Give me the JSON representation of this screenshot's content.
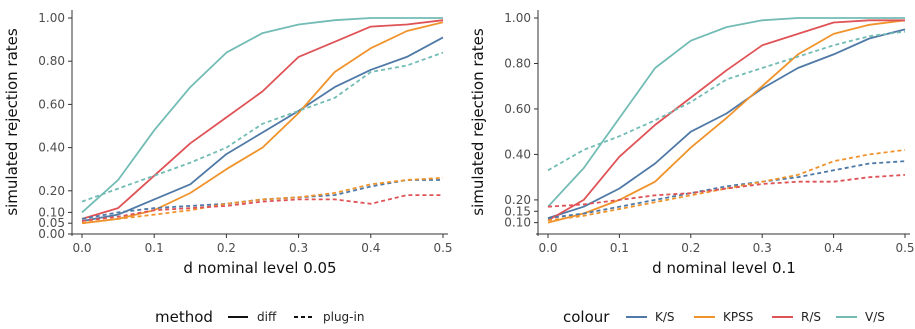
{
  "chart_data": [
    {
      "type": "line",
      "xlabel": "d nominal level 0.05",
      "ylabel": "simulated rejection rates",
      "xlim": [
        0,
        0.5
      ],
      "ylim": [
        0,
        1
      ],
      "x_ticks": [
        "0.0",
        "0.1",
        "0.2",
        "0.3",
        "0.4",
        "0.5"
      ],
      "y_ticks": [
        {
          "v": 0,
          "label": "0.00"
        },
        {
          "v": 0.05,
          "label": "0.05"
        },
        {
          "v": 0.1,
          "label": "0.10"
        },
        {
          "v": 0.2,
          "label": "0.20"
        },
        {
          "v": 0.4,
          "label": "0.40"
        },
        {
          "v": 0.6,
          "label": "0.60"
        },
        {
          "v": 0.8,
          "label": "0.80"
        },
        {
          "v": 1.0,
          "label": "1.00"
        }
      ],
      "x": [
        0,
        0.05,
        0.1,
        0.15,
        0.2,
        0.25,
        0.3,
        0.35,
        0.4,
        0.45,
        0.5
      ],
      "series": [
        {
          "name": "K/S",
          "method": "diff",
          "values": [
            0.06,
            0.09,
            0.16,
            0.23,
            0.37,
            0.47,
            0.57,
            0.68,
            0.76,
            0.82,
            0.91
          ]
        },
        {
          "name": "KPSS",
          "method": "diff",
          "values": [
            0.05,
            0.07,
            0.11,
            0.19,
            0.3,
            0.4,
            0.56,
            0.75,
            0.86,
            0.94,
            0.98
          ]
        },
        {
          "name": "R/S",
          "method": "diff",
          "values": [
            0.07,
            0.12,
            0.27,
            0.42,
            0.54,
            0.66,
            0.82,
            0.89,
            0.96,
            0.97,
            0.99
          ]
        },
        {
          "name": "V/S",
          "method": "diff",
          "values": [
            0.1,
            0.25,
            0.48,
            0.68,
            0.84,
            0.93,
            0.97,
            0.99,
            1.0,
            1.0,
            1.0
          ]
        },
        {
          "name": "K/S",
          "method": "plug-in",
          "values": [
            0.07,
            0.1,
            0.12,
            0.13,
            0.14,
            0.16,
            0.17,
            0.18,
            0.22,
            0.25,
            0.25
          ]
        },
        {
          "name": "KPSS",
          "method": "plug-in",
          "values": [
            0.05,
            0.07,
            0.09,
            0.11,
            0.14,
            0.16,
            0.17,
            0.19,
            0.23,
            0.25,
            0.26
          ]
        },
        {
          "name": "R/S",
          "method": "plug-in",
          "values": [
            0.06,
            0.08,
            0.11,
            0.12,
            0.13,
            0.15,
            0.16,
            0.16,
            0.14,
            0.18,
            0.18
          ]
        },
        {
          "name": "V/S",
          "method": "plug-in",
          "values": [
            0.15,
            0.21,
            0.27,
            0.33,
            0.4,
            0.51,
            0.57,
            0.63,
            0.75,
            0.78,
            0.84
          ]
        }
      ]
    },
    {
      "type": "line",
      "xlabel": "d nominal level 0.1",
      "ylabel": "simulated rejection rates",
      "xlim": [
        0,
        0.5
      ],
      "ylim": [
        0.05,
        1
      ],
      "x_ticks": [
        "0.0",
        "0.1",
        "0.2",
        "0.3",
        "0.4",
        "0.5"
      ],
      "y_ticks": [
        {
          "v": 0.1,
          "label": "0.10"
        },
        {
          "v": 0.15,
          "label": "0.15"
        },
        {
          "v": 0.2,
          "label": "0.20"
        },
        {
          "v": 0.4,
          "label": "0.40"
        },
        {
          "v": 0.6,
          "label": "0.60"
        },
        {
          "v": 0.8,
          "label": "0.80"
        },
        {
          "v": 1.0,
          "label": "1.00"
        }
      ],
      "x": [
        0,
        0.05,
        0.1,
        0.15,
        0.2,
        0.25,
        0.3,
        0.35,
        0.4,
        0.45,
        0.5
      ],
      "series": [
        {
          "name": "K/S",
          "method": "diff",
          "values": [
            0.12,
            0.17,
            0.25,
            0.36,
            0.5,
            0.58,
            0.69,
            0.78,
            0.84,
            0.91,
            0.95
          ]
        },
        {
          "name": "KPSS",
          "method": "diff",
          "values": [
            0.1,
            0.14,
            0.2,
            0.28,
            0.43,
            0.56,
            0.7,
            0.84,
            0.93,
            0.97,
            0.99
          ]
        },
        {
          "name": "R/S",
          "method": "diff",
          "values": [
            0.11,
            0.2,
            0.39,
            0.53,
            0.65,
            0.77,
            0.88,
            0.93,
            0.98,
            0.99,
            0.99
          ]
        },
        {
          "name": "V/S",
          "method": "diff",
          "values": [
            0.17,
            0.34,
            0.56,
            0.78,
            0.9,
            0.96,
            0.99,
            1.0,
            1.0,
            1.0,
            1.0
          ]
        },
        {
          "name": "K/S",
          "method": "plug-in",
          "values": [
            0.12,
            0.14,
            0.17,
            0.2,
            0.23,
            0.26,
            0.28,
            0.3,
            0.33,
            0.36,
            0.37
          ]
        },
        {
          "name": "KPSS",
          "method": "plug-in",
          "values": [
            0.11,
            0.13,
            0.16,
            0.19,
            0.22,
            0.25,
            0.28,
            0.31,
            0.37,
            0.4,
            0.42
          ]
        },
        {
          "name": "R/S",
          "method": "plug-in",
          "values": [
            0.17,
            0.18,
            0.2,
            0.22,
            0.23,
            0.25,
            0.27,
            0.28,
            0.28,
            0.3,
            0.31
          ]
        },
        {
          "name": "V/S",
          "method": "plug-in",
          "values": [
            0.33,
            0.42,
            0.48,
            0.55,
            0.63,
            0.73,
            0.78,
            0.83,
            0.88,
            0.92,
            0.94
          ]
        }
      ]
    }
  ],
  "legend_method": {
    "title": "method",
    "items": [
      {
        "label": "diff",
        "dash": "solid"
      },
      {
        "label": "plug-in",
        "dash": "dashed"
      }
    ]
  },
  "legend_colour": {
    "title": "colour",
    "items": [
      {
        "label": "K/S",
        "color": "#4f79a6"
      },
      {
        "label": "KPSS",
        "color": "#f0932b"
      },
      {
        "label": "R/S",
        "color": "#df5357"
      },
      {
        "label": "V/S",
        "color": "#72bcb5"
      }
    ]
  }
}
